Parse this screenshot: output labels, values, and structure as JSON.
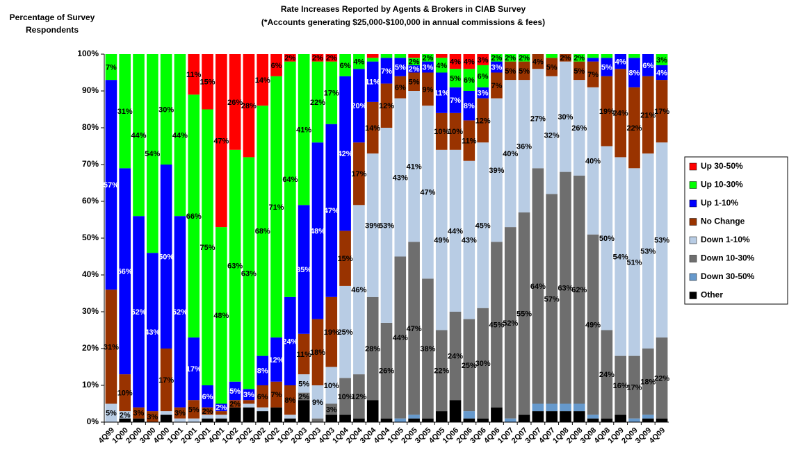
{
  "chart_data": {
    "type": "stacked_bar",
    "title": [
      "Rate Increases Reported by Agents & Brokers in CIAB Survey",
      "(*Accounts generating $25,000-$100,000 in annual commissions & fees)"
    ],
    "y_label": [
      "Percentage of Survey",
      "Respondents"
    ],
    "categories": [
      "4Q99",
      "1Q00",
      "2Q00",
      "3Q00",
      "4Q00",
      "1Q01",
      "2Q01",
      "3Q01",
      "4Q01",
      "1Q02",
      "2Q02",
      "3Q02",
      "4Q02",
      "1Q03",
      "2Q03",
      "3Q03",
      "4Q03",
      "1Q04",
      "2Q04",
      "3Q04",
      "4Q04",
      "1Q05",
      "2Q05",
      "3Q05",
      "4Q05",
      "1Q06",
      "2Q06",
      "3Q06",
      "4Q06",
      "1Q07",
      "2Q07",
      "3Q07",
      "4Q07",
      "1Q08",
      "2Q08",
      "3Q08",
      "4Q08",
      "1Q09",
      "2Q09",
      "3Q09",
      "4Q09"
    ],
    "ylim": [
      0,
      100
    ],
    "yticks": [
      {
        "value": 0,
        "label": "0%"
      },
      {
        "value": 10,
        "label": "10%"
      },
      {
        "value": 20,
        "label": "20%"
      },
      {
        "value": 30,
        "label": "30%"
      },
      {
        "value": 40,
        "label": "40%"
      },
      {
        "value": 50,
        "label": "50%"
      },
      {
        "value": 60,
        "label": "60%"
      },
      {
        "value": 70,
        "label": "70%"
      },
      {
        "value": 80,
        "label": "80%"
      },
      {
        "value": 90,
        "label": "90%"
      },
      {
        "value": 100,
        "label": "100%"
      }
    ],
    "legend": "right",
    "series": [
      {
        "name": "Up 30-50%",
        "color": "#ff0000",
        "values": [
          0,
          0,
          0,
          0,
          0,
          0,
          11,
          15,
          47,
          26,
          28,
          14,
          6,
          2,
          0,
          2,
          2,
          0,
          0,
          1,
          0,
          0,
          1,
          0,
          1,
          4,
          4,
          3,
          0,
          0,
          0,
          0,
          0,
          0,
          0,
          0,
          0,
          0,
          0,
          0,
          0
        ],
        "value_labels": [
          null,
          null,
          null,
          null,
          null,
          null,
          "11%",
          "15%",
          "47%",
          "26%",
          "28%",
          "14%",
          "6%",
          "2%",
          null,
          "2%",
          "2%",
          null,
          null,
          null,
          null,
          null,
          null,
          null,
          null,
          "4%",
          "4%",
          "3%",
          null,
          null,
          null,
          null,
          null,
          null,
          null,
          null,
          null,
          null,
          null,
          null,
          null
        ]
      },
      {
        "name": "Up 10-30%",
        "color": "#00ff00",
        "values": [
          7,
          31,
          44,
          54,
          30,
          44,
          66,
          75,
          48,
          63,
          63,
          68,
          71,
          64,
          41,
          22,
          17,
          6,
          4,
          1,
          1,
          1,
          2,
          2,
          4,
          5,
          6,
          6,
          2,
          2,
          2,
          0,
          1,
          0,
          2,
          1,
          1,
          0,
          1,
          0,
          3
        ],
        "value_labels": [
          "7%",
          "31%",
          "44%",
          "54%",
          "30%",
          "44%",
          "66%",
          "75%",
          "48%",
          "63%",
          "63%",
          "68%",
          "71%",
          "64%",
          "41%",
          "22%",
          "17%",
          "6%",
          "4%",
          null,
          null,
          null,
          "2%",
          "2%",
          "4%",
          "5%",
          "6%",
          "6%",
          "2%",
          "2%",
          "2%",
          null,
          null,
          null,
          "2%",
          null,
          null,
          null,
          null,
          null,
          "3%"
        ]
      },
      {
        "name": "Up 1-10%",
        "color": "#0000ff",
        "values": [
          57,
          56,
          52,
          43,
          50,
          52,
          17,
          6,
          2,
          5,
          3,
          8,
          12,
          24,
          35,
          48,
          47,
          42,
          20,
          11,
          7,
          5,
          2,
          3,
          11,
          7,
          8,
          3,
          3,
          0,
          0,
          0,
          0,
          0,
          0,
          1,
          5,
          4,
          8,
          6,
          4
        ],
        "value_labels": [
          "57%",
          "56%",
          "52%",
          "43%",
          "50%",
          "52%",
          "17%",
          "6%",
          "2%",
          "5%",
          "3%",
          "8%",
          "12%",
          "24%",
          "35%",
          "48%",
          "47%",
          "42%",
          "20%",
          "11%",
          "7%",
          "5%",
          "2%",
          "3%",
          "11%",
          "7%",
          "8%",
          "3%",
          "3%",
          null,
          null,
          null,
          null,
          null,
          null,
          null,
          "5%",
          "4%",
          "8%",
          "6%",
          "4%"
        ]
      },
      {
        "name": "No Change",
        "color": "#993300",
        "values": [
          31,
          10,
          3,
          3,
          17,
          3,
          5,
          2,
          1,
          2,
          1,
          6,
          7,
          8,
          11,
          18,
          19,
          15,
          17,
          14,
          12,
          6,
          5,
          9,
          10,
          10,
          11,
          12,
          7,
          5,
          5,
          4,
          5,
          2,
          5,
          7,
          19,
          24,
          22,
          21,
          17
        ],
        "value_labels": [
          "31%",
          "10%",
          "3%",
          "3%",
          "17%",
          "3%",
          "5%",
          "2%",
          null,
          "2%",
          null,
          "6%",
          "7%",
          "8%",
          "11%",
          "18%",
          "19%",
          "15%",
          "17%",
          "14%",
          "12%",
          "6%",
          "5%",
          "9%",
          "10%",
          "10%",
          "11%",
          "12%",
          "7%",
          "5%",
          "5%",
          "4%",
          "5%",
          "2%",
          "5%",
          "7%",
          "19%",
          "24%",
          "22%",
          "21%",
          "17%"
        ]
      },
      {
        "name": "Down 1-10%",
        "color": "#b8cce4",
        "values": [
          5,
          2,
          0,
          0,
          1,
          1,
          1,
          1,
          1,
          0,
          1,
          1,
          0,
          1,
          5,
          9,
          10,
          25,
          46,
          39,
          53,
          43,
          41,
          47,
          49,
          44,
          43,
          45,
          39,
          40,
          36,
          27,
          32,
          30,
          26,
          40,
          50,
          54,
          51,
          53,
          53
        ],
        "value_labels": [
          "5%",
          "2%",
          null,
          null,
          null,
          null,
          null,
          null,
          null,
          null,
          null,
          null,
          null,
          null,
          "5%",
          "9%",
          "10%",
          "25%",
          "46%",
          "39%",
          "53%",
          "43%",
          "41%",
          "47%",
          "49%",
          "44%",
          "43%",
          "45%",
          "39%",
          "40%",
          "36%",
          "27%",
          "32%",
          "30%",
          "26%",
          "40%",
          "50%",
          "54%",
          "51%",
          "53%",
          "53%"
        ]
      },
      {
        "name": "Down 10-30%",
        "color": "#6e6e6e",
        "values": [
          0,
          0,
          0,
          0,
          0,
          0,
          0,
          0,
          0,
          0,
          0,
          0,
          0,
          0,
          2,
          1,
          3,
          10,
          12,
          28,
          26,
          44,
          47,
          38,
          22,
          24,
          25,
          30,
          45,
          52,
          55,
          64,
          57,
          63,
          62,
          49,
          24,
          16,
          17,
          18,
          22
        ],
        "value_labels": [
          null,
          null,
          null,
          null,
          null,
          null,
          null,
          null,
          null,
          null,
          null,
          null,
          null,
          null,
          "2%",
          null,
          "3%",
          "10%",
          "12%",
          "28%",
          "26%",
          "44%",
          "47%",
          "38%",
          "22%",
          "24%",
          "25%",
          "30%",
          "45%",
          "52%",
          "55%",
          "64%",
          "57%",
          "63%",
          "62%",
          "49%",
          "24%",
          "16%",
          "17%",
          "18%",
          "22%"
        ]
      },
      {
        "name": "Down 30-50%",
        "color": "#6699cc",
        "values": [
          0,
          0,
          0,
          0,
          0,
          0,
          0,
          0,
          0,
          0,
          0,
          0,
          0,
          0,
          0,
          0,
          0,
          0,
          0,
          0,
          0,
          1,
          1,
          0,
          0,
          0,
          2,
          0,
          0,
          1,
          0,
          2,
          2,
          2,
          2,
          1,
          0,
          0,
          1,
          1,
          0
        ],
        "value_labels": [
          null,
          null,
          null,
          null,
          null,
          null,
          null,
          null,
          null,
          null,
          null,
          null,
          null,
          null,
          null,
          null,
          null,
          null,
          null,
          null,
          null,
          null,
          null,
          null,
          null,
          null,
          null,
          null,
          null,
          null,
          null,
          null,
          null,
          null,
          null,
          null,
          null,
          null,
          null,
          null,
          null
        ]
      },
      {
        "name": "Other",
        "color": "#000000",
        "values": [
          0,
          1,
          1,
          0,
          2,
          0,
          0,
          1,
          1,
          4,
          4,
          3,
          4,
          1,
          6,
          0,
          2,
          2,
          1,
          6,
          1,
          0,
          1,
          1,
          3,
          6,
          1,
          1,
          4,
          0,
          2,
          3,
          3,
          3,
          3,
          1,
          1,
          2,
          0,
          1,
          1
        ],
        "value_labels": [
          null,
          null,
          null,
          null,
          null,
          null,
          null,
          null,
          null,
          null,
          null,
          null,
          null,
          null,
          null,
          null,
          null,
          null,
          null,
          null,
          null,
          null,
          null,
          null,
          null,
          null,
          null,
          null,
          null,
          null,
          null,
          null,
          null,
          null,
          null,
          null,
          null,
          null,
          null,
          null,
          null
        ]
      }
    ]
  }
}
